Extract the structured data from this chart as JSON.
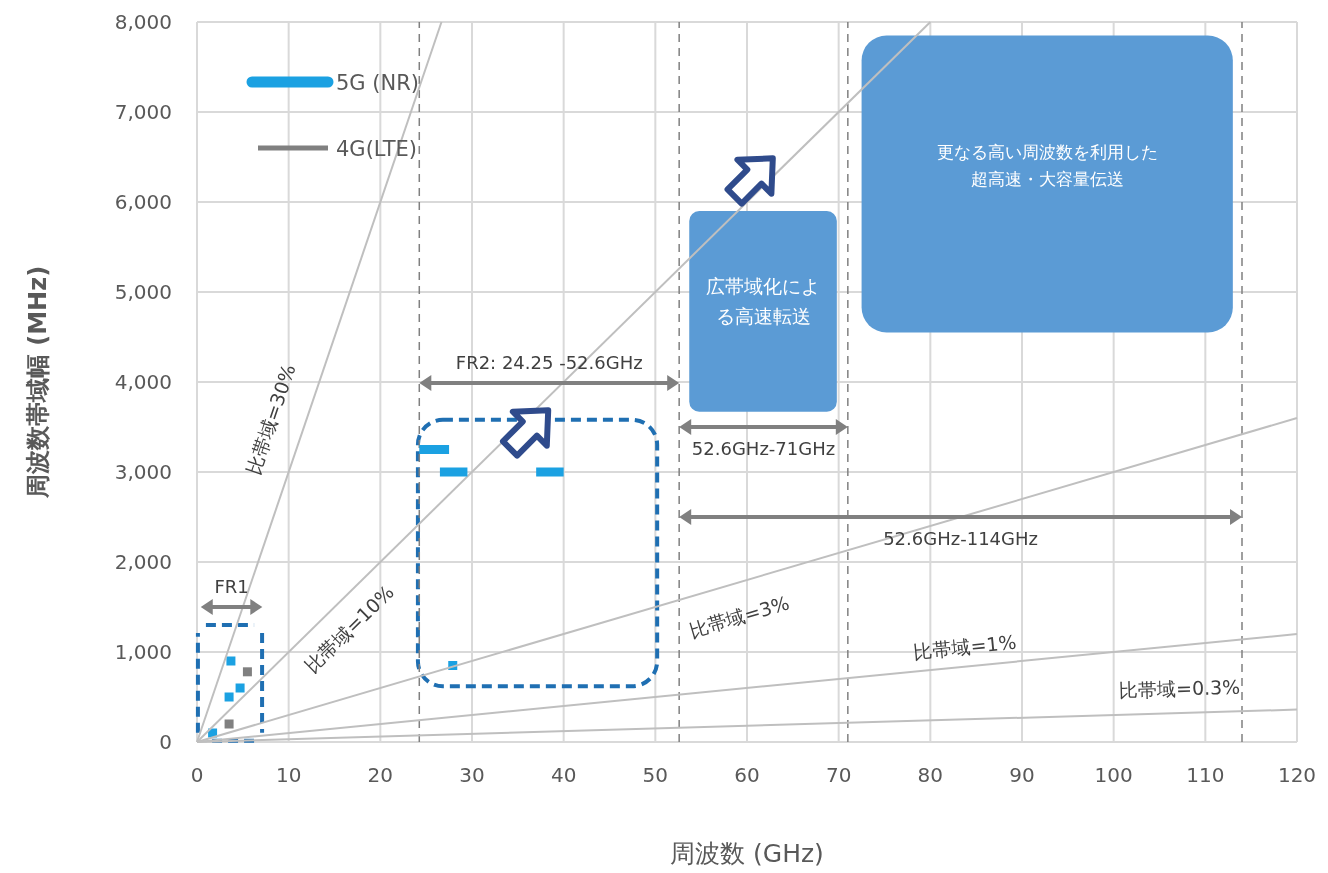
{
  "chart_data": {
    "type": "line",
    "xlabel": "周波数 (GHz)",
    "ylabel": "周波数帯域幅 (MHz)",
    "xlim": [
      0,
      120
    ],
    "xticks": [
      0,
      10,
      20,
      30,
      40,
      50,
      60,
      70,
      80,
      90,
      100,
      110,
      120
    ],
    "ylim": [
      0,
      8000
    ],
    "yticks": [
      0,
      {
        "value": 1000,
        "label": "1,000"
      },
      {
        "value": 2000,
        "label": "2,000"
      },
      {
        "value": 3000,
        "label": "3,000"
      },
      {
        "value": 4000,
        "label": "4,000"
      },
      {
        "value": 5000,
        "label": "5,000"
      },
      {
        "value": 6000,
        "label": "6,000"
      },
      {
        "value": 7000,
        "label": "7,000"
      },
      {
        "value": 8000,
        "label": "8,000"
      }
    ],
    "grid": true,
    "legend": "top left",
    "series": [
      {
        "name": "5G (NR)",
        "color": "#1ba1e2",
        "x": [
          24.25,
          27.5,
          null,
          26.5,
          29.5,
          null,
          37,
          40
        ],
        "values": [
          3250,
          3250,
          null,
          3000,
          3000,
          null,
          3000,
          3000
        ]
      },
      {
        "name": "4G(LTE)",
        "type": "scatter",
        "marker": "square",
        "color": "#808080",
        "x": [
          5.5,
          3.5
        ],
        "values": [
          780,
          200
        ]
      },
      {
        "type": "scatter",
        "marker": "square",
        "color": "#1ba1e2",
        "x": [
          27.9,
          3.7,
          3.5,
          4.7,
          1.7
        ],
        "values": [
          850,
          900,
          500,
          600,
          100
        ]
      },
      {
        "color": "#bfbfbf",
        "x": [
          0,
          26.67
        ],
        "values": [
          0,
          8000
        ]
      },
      {
        "color": "#bfbfbf",
        "x": [
          0,
          80
        ],
        "values": [
          0,
          8000
        ]
      },
      {
        "color": "#bfbfbf",
        "x": [
          0,
          120
        ],
        "values": [
          0,
          3600
        ]
      },
      {
        "color": "#bfbfbf",
        "x": [
          0,
          120
        ],
        "values": [
          0,
          1200
        ]
      },
      {
        "color": "#bfbfbf",
        "x": [
          0,
          120
        ],
        "values": [
          0,
          360
        ]
      }
    ],
    "ref_lines": [
      {
        "axis": "x",
        "value": 24.25,
        "color": "#808080",
        "line_style": "dashed"
      },
      {
        "axis": "x",
        "value": 52.6,
        "color": "#808080",
        "line_style": "dashed"
      },
      {
        "axis": "x",
        "value": 71,
        "color": "#808080",
        "line_style": "dashed"
      },
      {
        "axis": "x",
        "value": 114,
        "color": "#808080",
        "line_style": "dashed"
      }
    ],
    "annotations": [
      "比帯域=30%",
      "比帯域=10%",
      "比帯域=3%",
      "比帯域=1%",
      "比帯域=0.3%",
      "広帯域化による高速転送",
      "更なる高い周波数を利用した超高速・大容量伝送",
      "FR1",
      "FR2: 24.25 -52.6GHz",
      "52.6GHz-71GHz",
      "52.6GHz-114GHz"
    ]
  }
}
